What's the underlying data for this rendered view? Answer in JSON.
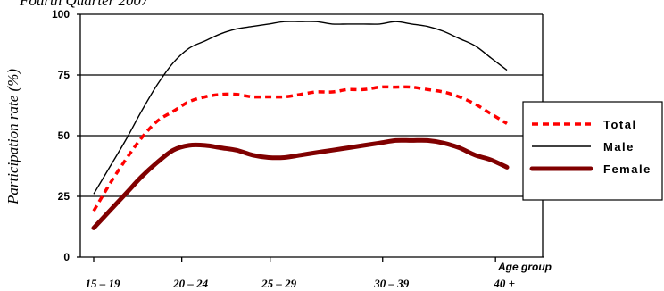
{
  "chart_data": {
    "type": "line",
    "title": "Fourth Quarter 2007",
    "xlabel": "Age group",
    "ylabel": "Participation rate (%)",
    "ylim": [
      0,
      100
    ],
    "yticks": [
      "0",
      "25",
      "50",
      "75",
      "100"
    ],
    "grid": true,
    "legend_position": "right",
    "x_ticks": [
      {
        "label": "15 – 19",
        "x": 0
      },
      {
        "label": "20 – 24",
        "x": 2.77
      },
      {
        "label": "25 – 29",
        "x": 5.55
      },
      {
        "label": "30 – 39",
        "x": 9.09
      },
      {
        "label": "40 +",
        "x": 12.64
      }
    ],
    "series": [
      {
        "name": "Total",
        "color": "#ff0000",
        "style": "dashed",
        "points": [
          [
            0,
            19
          ],
          [
            0.5,
            30
          ],
          [
            1,
            40
          ],
          [
            1.5,
            49
          ],
          [
            2,
            56
          ],
          [
            2.5,
            60
          ],
          [
            3,
            64
          ],
          [
            3.5,
            66
          ],
          [
            4,
            67
          ],
          [
            4.5,
            67
          ],
          [
            5,
            66
          ],
          [
            5.5,
            66
          ],
          [
            6,
            66
          ],
          [
            6.5,
            67
          ],
          [
            7,
            68
          ],
          [
            7.5,
            68
          ],
          [
            8,
            69
          ],
          [
            8.5,
            69
          ],
          [
            9,
            70
          ],
          [
            9.5,
            70
          ],
          [
            10,
            70
          ],
          [
            10.5,
            69
          ],
          [
            11,
            68
          ],
          [
            11.5,
            66
          ],
          [
            12,
            63
          ],
          [
            12.5,
            59
          ],
          [
            13,
            55
          ]
        ]
      },
      {
        "name": "Male",
        "color": "#000000",
        "style": "solid",
        "points": [
          [
            0,
            26
          ],
          [
            0.5,
            37
          ],
          [
            1,
            48
          ],
          [
            1.5,
            60
          ],
          [
            2,
            71
          ],
          [
            2.5,
            80
          ],
          [
            3,
            86
          ],
          [
            3.5,
            89
          ],
          [
            4,
            92
          ],
          [
            4.5,
            94
          ],
          [
            5,
            95
          ],
          [
            5.5,
            96
          ],
          [
            6,
            97
          ],
          [
            6.5,
            97
          ],
          [
            7,
            97
          ],
          [
            7.5,
            96
          ],
          [
            8,
            96
          ],
          [
            8.5,
            96
          ],
          [
            9,
            96
          ],
          [
            9.5,
            97
          ],
          [
            10,
            96
          ],
          [
            10.5,
            95
          ],
          [
            11,
            93
          ],
          [
            11.5,
            90
          ],
          [
            12,
            87
          ],
          [
            12.5,
            82
          ],
          [
            13,
            77
          ]
        ]
      },
      {
        "name": "Female",
        "color": "#800000",
        "style": "thick",
        "points": [
          [
            0,
            12
          ],
          [
            0.5,
            19
          ],
          [
            1,
            26
          ],
          [
            1.5,
            33
          ],
          [
            2,
            39
          ],
          [
            2.5,
            44
          ],
          [
            3,
            46
          ],
          [
            3.5,
            46
          ],
          [
            4,
            45
          ],
          [
            4.5,
            44
          ],
          [
            5,
            42
          ],
          [
            5.5,
            41
          ],
          [
            6,
            41
          ],
          [
            6.5,
            42
          ],
          [
            7,
            43
          ],
          [
            7.5,
            44
          ],
          [
            8,
            45
          ],
          [
            8.5,
            46
          ],
          [
            9,
            47
          ],
          [
            9.5,
            48
          ],
          [
            10,
            48
          ],
          [
            10.5,
            48
          ],
          [
            11,
            47
          ],
          [
            11.5,
            45
          ],
          [
            12,
            42
          ],
          [
            12.5,
            40
          ],
          [
            13,
            37
          ]
        ]
      }
    ]
  }
}
